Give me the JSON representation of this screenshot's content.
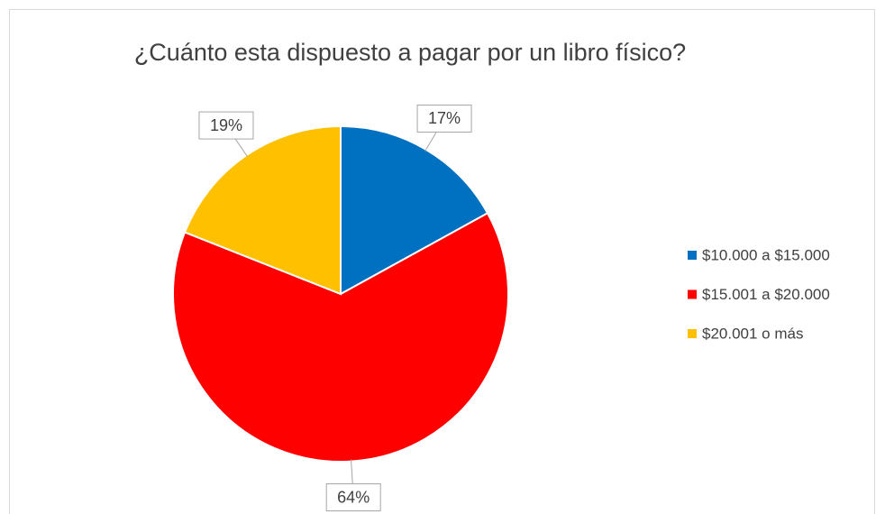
{
  "chart_data": {
    "type": "pie",
    "title": "¿Cuánto esta dispuesto a pagar por un libro físico?",
    "categories": [
      "$10.000 a $15.000",
      "$15.001 a $20.000",
      "$20.001 o más"
    ],
    "values": [
      17,
      64,
      19
    ],
    "value_labels": [
      "17%",
      "64%",
      "19%"
    ],
    "colors": [
      "#0070c0",
      "#ff0000",
      "#ffc000"
    ],
    "legend": "right"
  }
}
